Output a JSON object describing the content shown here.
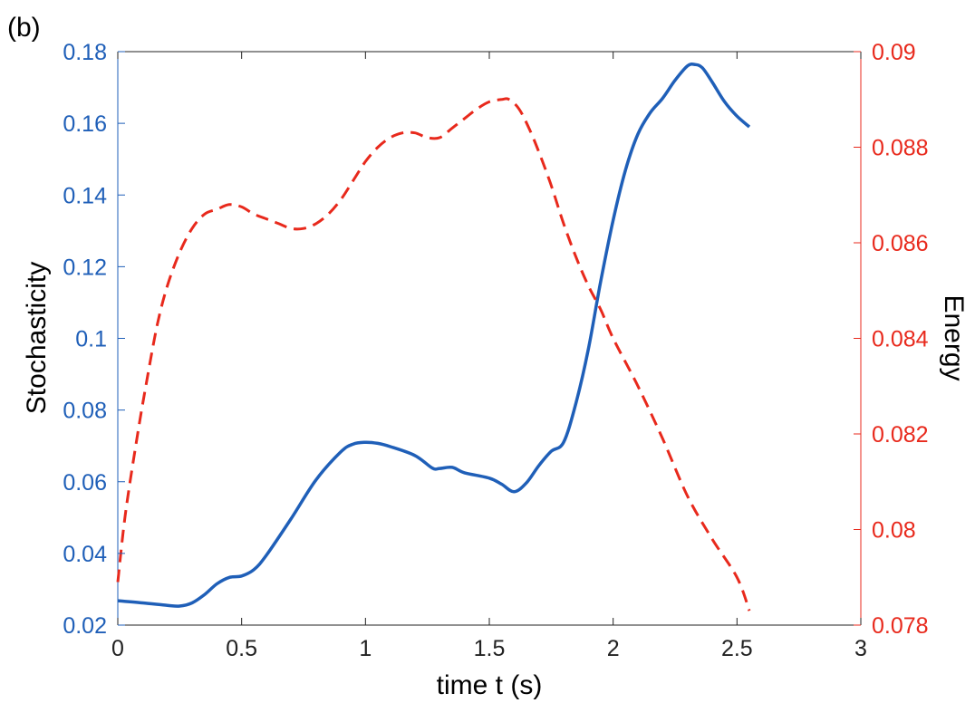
{
  "panel_label": "(b)",
  "colors": {
    "left_axis": "#1f5fb8",
    "right_axis": "#e8291c",
    "axes_box": "#222222"
  },
  "chart_data": {
    "type": "line",
    "title": "",
    "xlabel": "time  t (s)",
    "ylabel_left": "Stochasticity",
    "ylabel_right": "Energy",
    "xlim": [
      0,
      3
    ],
    "ylim_left": [
      0.02,
      0.18
    ],
    "ylim_right": [
      0.078,
      0.09
    ],
    "grid": false,
    "legend": "none",
    "x_ticks": [
      "0",
      "0.5",
      "1",
      "1.5",
      "2",
      "2.5",
      "3"
    ],
    "y_left_ticks": [
      "0.02",
      "0.04",
      "0.06",
      "0.08",
      "0.1",
      "0.12",
      "0.14",
      "0.16",
      "0.18"
    ],
    "y_right_ticks": [
      "0.078",
      "0.08",
      "0.082",
      "0.084",
      "0.086",
      "0.088",
      "0.09"
    ],
    "series": [
      {
        "axis": "left",
        "style": "solid",
        "color": "#1f5fb8",
        "x": [
          0,
          0.1,
          0.2,
          0.25,
          0.3,
          0.35,
          0.4,
          0.45,
          0.5,
          0.55,
          0.6,
          0.7,
          0.8,
          0.9,
          0.95,
          1.0,
          1.05,
          1.1,
          1.2,
          1.27,
          1.3,
          1.35,
          1.4,
          1.5,
          1.55,
          1.6,
          1.65,
          1.7,
          1.75,
          1.8,
          1.85,
          1.9,
          1.95,
          2.0,
          2.05,
          2.1,
          2.15,
          2.2,
          2.25,
          2.3,
          2.33,
          2.36,
          2.4,
          2.45,
          2.5,
          2.55
        ],
        "values": [
          0.0268,
          0.0262,
          0.0255,
          0.0253,
          0.0262,
          0.0285,
          0.0315,
          0.0333,
          0.0337,
          0.0355,
          0.0395,
          0.0497,
          0.0605,
          0.0683,
          0.0705,
          0.071,
          0.0707,
          0.0698,
          0.0673,
          0.0638,
          0.0637,
          0.064,
          0.0625,
          0.061,
          0.0593,
          0.0572,
          0.0597,
          0.0645,
          0.0685,
          0.071,
          0.082,
          0.097,
          0.116,
          0.133,
          0.147,
          0.157,
          0.163,
          0.167,
          0.172,
          0.176,
          0.1764,
          0.1755,
          0.1715,
          0.166,
          0.162,
          0.159
        ]
      },
      {
        "axis": "right",
        "style": "dashed",
        "color": "#e8291c",
        "x": [
          0,
          0.03,
          0.08,
          0.12,
          0.16,
          0.2,
          0.25,
          0.3,
          0.35,
          0.4,
          0.45,
          0.5,
          0.55,
          0.6,
          0.65,
          0.7,
          0.75,
          0.8,
          0.85,
          0.9,
          0.95,
          1.0,
          1.05,
          1.1,
          1.15,
          1.2,
          1.25,
          1.3,
          1.35,
          1.4,
          1.45,
          1.5,
          1.55,
          1.58,
          1.62,
          1.66,
          1.7,
          1.75,
          1.8,
          1.85,
          1.9,
          1.95,
          2.0,
          2.1,
          2.2,
          2.3,
          2.4,
          2.5,
          2.55
        ],
        "values": [
          0.0789,
          0.0803,
          0.082,
          0.0832,
          0.0843,
          0.0851,
          0.0858,
          0.0863,
          0.0866,
          0.0867,
          0.0868,
          0.08675,
          0.0866,
          0.0865,
          0.0864,
          0.0863,
          0.0863,
          0.0864,
          0.0866,
          0.0869,
          0.0873,
          0.0877,
          0.088,
          0.0882,
          0.0883,
          0.0883,
          0.0882,
          0.0882,
          0.0884,
          0.0886,
          0.0888,
          0.08895,
          0.089,
          0.089,
          0.0888,
          0.0884,
          0.0879,
          0.0872,
          0.0864,
          0.0857,
          0.0851,
          0.0846,
          0.084,
          0.083,
          0.0819,
          0.0807,
          0.0798,
          0.079,
          0.0783
        ]
      }
    ]
  }
}
